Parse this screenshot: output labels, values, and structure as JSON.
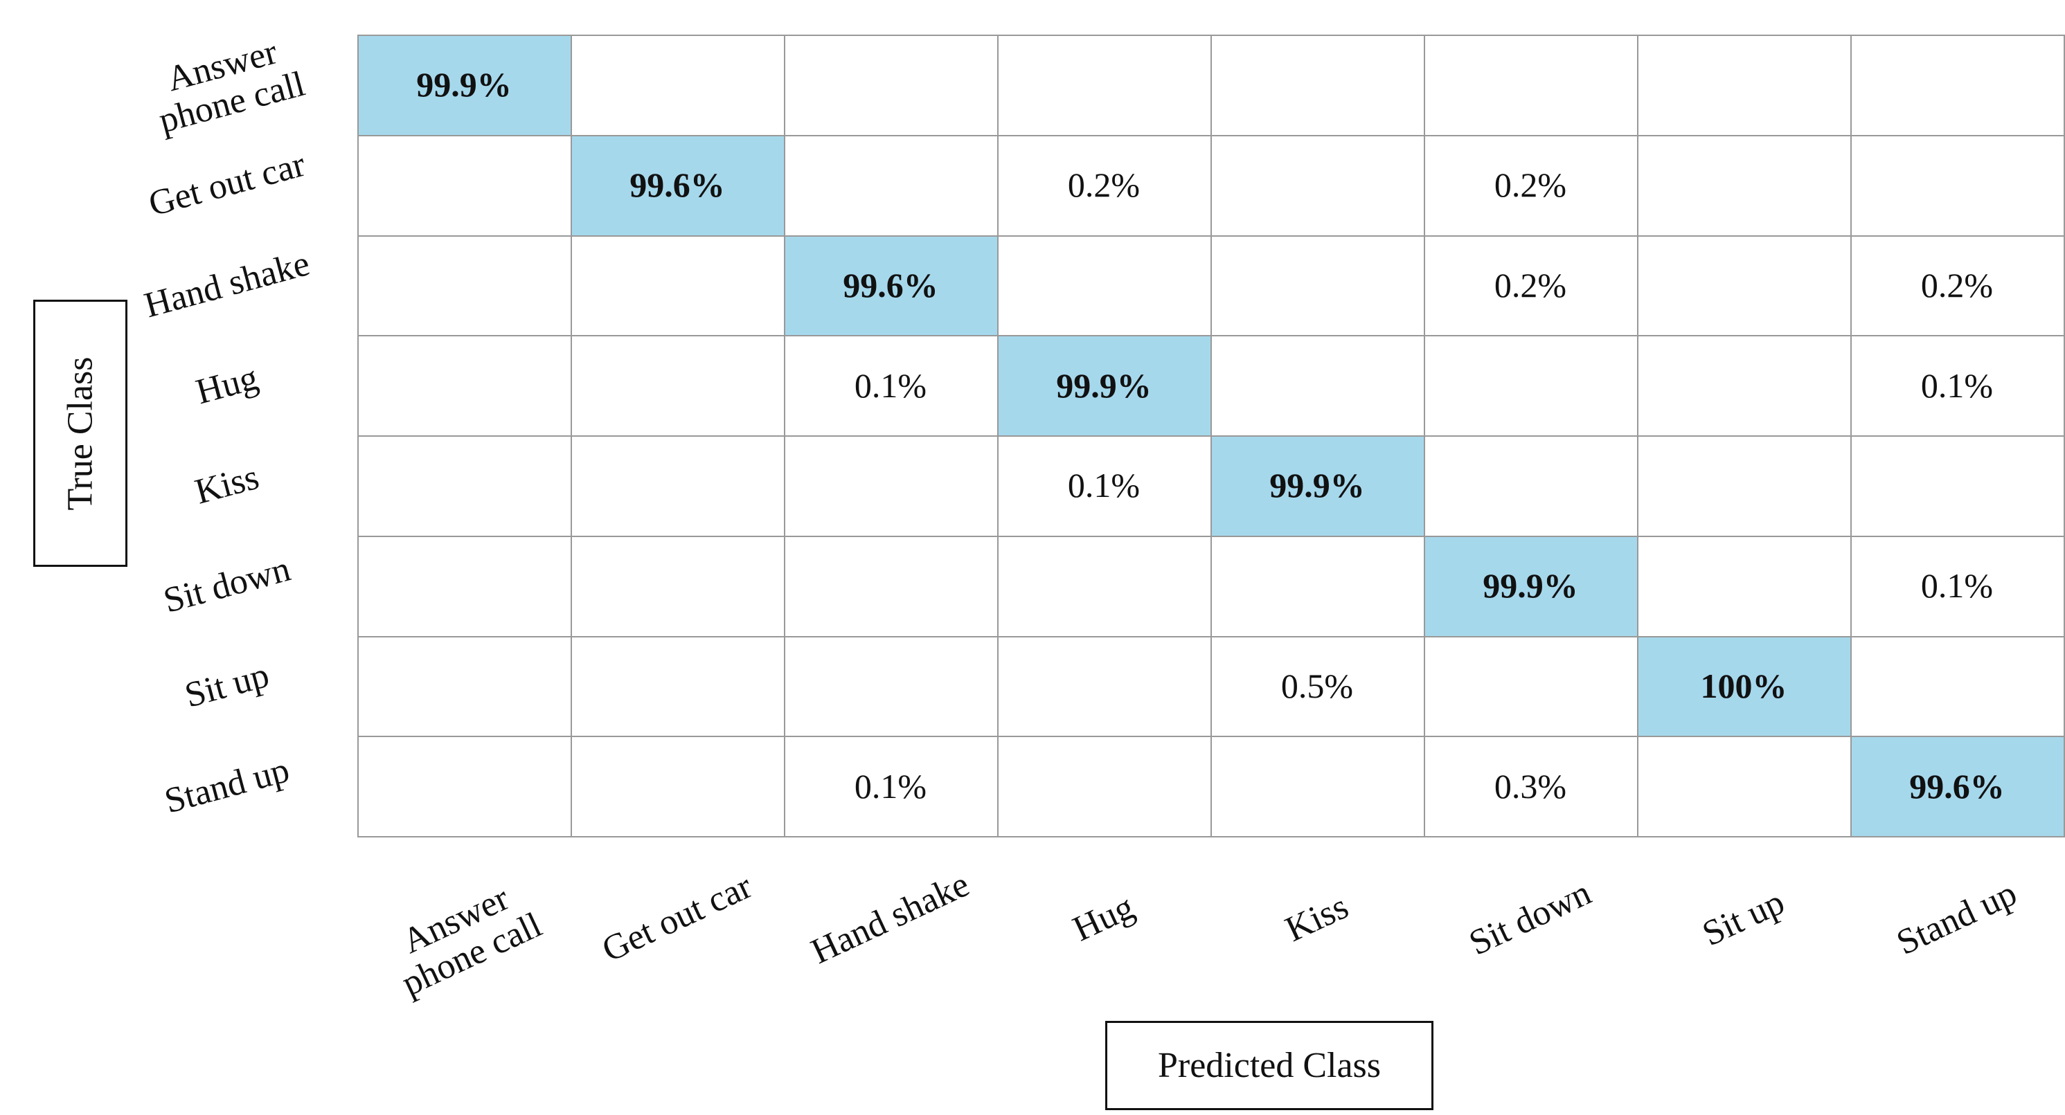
{
  "chart_data": {
    "type": "heatmap",
    "xlabel": "Predicted Class",
    "ylabel": "True Class",
    "x_categories": [
      "Answer phone call",
      "Get out car",
      "Hand shake",
      "Hug",
      "Kiss",
      "Sit down",
      "Sit up",
      "Stand up"
    ],
    "y_categories": [
      "Answer phone call",
      "Get out car",
      "Hand shake",
      "Hug",
      "Kiss",
      "Sit down",
      "Sit up",
      "Stand up"
    ],
    "values": [
      [
        99.9,
        null,
        null,
        null,
        null,
        null,
        null,
        null
      ],
      [
        null,
        99.6,
        null,
        0.2,
        null,
        0.2,
        null,
        null
      ],
      [
        null,
        null,
        99.6,
        null,
        null,
        0.2,
        null,
        0.2
      ],
      [
        null,
        null,
        0.1,
        99.9,
        null,
        null,
        null,
        0.1
      ],
      [
        null,
        null,
        null,
        0.1,
        99.9,
        null,
        null,
        null
      ],
      [
        null,
        null,
        null,
        null,
        null,
        99.9,
        null,
        0.1
      ],
      [
        null,
        null,
        null,
        null,
        0.5,
        null,
        100,
        null
      ],
      [
        null,
        null,
        0.1,
        null,
        null,
        0.3,
        null,
        99.6
      ]
    ],
    "value_labels": [
      [
        "99.9%",
        null,
        null,
        null,
        null,
        null,
        null,
        null
      ],
      [
        null,
        "99.6%",
        null,
        "0.2%",
        null,
        "0.2%",
        null,
        null
      ],
      [
        null,
        null,
        "99.6%",
        null,
        null,
        "0.2%",
        null,
        "0.2%"
      ],
      [
        null,
        null,
        "0.1%",
        "99.9%",
        null,
        null,
        null,
        "0.1%"
      ],
      [
        null,
        null,
        null,
        "0.1%",
        "99.9%",
        null,
        null,
        null
      ],
      [
        null,
        null,
        null,
        null,
        null,
        "99.9%",
        null,
        "0.1%"
      ],
      [
        null,
        null,
        null,
        null,
        "0.5%",
        null,
        "100%",
        null
      ],
      [
        null,
        null,
        "0.1%",
        null,
        null,
        "0.3%",
        null,
        "99.6%"
      ]
    ],
    "diagonal_color": "#a6d8ec",
    "cell_color": "#ffffff"
  }
}
